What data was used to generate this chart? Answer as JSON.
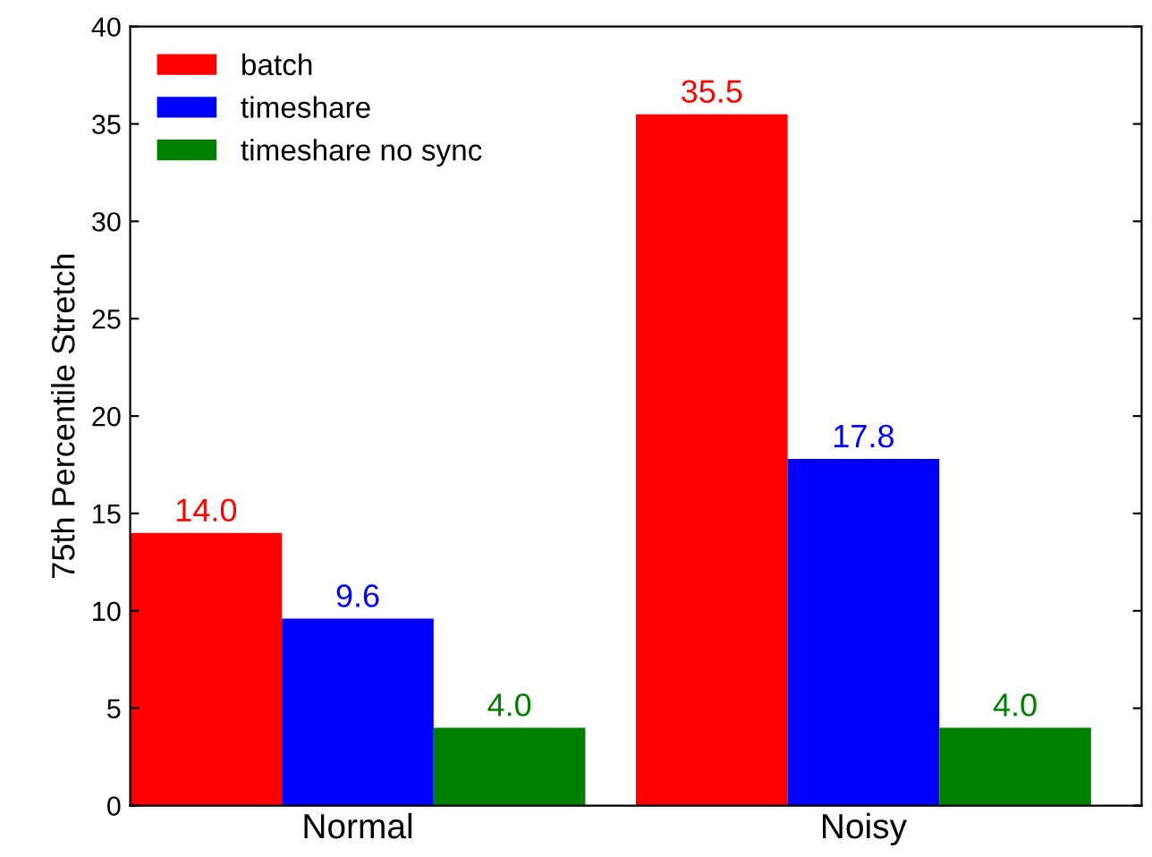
{
  "chart_data": {
    "type": "bar",
    "ylabel": "75th Percentile Stretch",
    "categories": [
      "Normal",
      "Noisy"
    ],
    "series": [
      {
        "name": "batch",
        "color": "#ff0000",
        "values": [
          14.0,
          35.5
        ],
        "value_labels": [
          "14.0",
          "35.5"
        ]
      },
      {
        "name": "timeshare",
        "color": "#0000ff",
        "values": [
          9.6,
          17.8
        ],
        "value_labels": [
          "9.6",
          "17.8"
        ]
      },
      {
        "name": "timeshare no sync",
        "color": "#008000",
        "values": [
          4.0,
          4.0
        ],
        "value_labels": [
          "4.0",
          "4.0"
        ]
      }
    ],
    "ylim": [
      0,
      40
    ],
    "yticks": [
      0,
      5,
      10,
      15,
      20,
      25,
      30,
      35,
      40
    ],
    "grid": false,
    "legend": "top left"
  }
}
